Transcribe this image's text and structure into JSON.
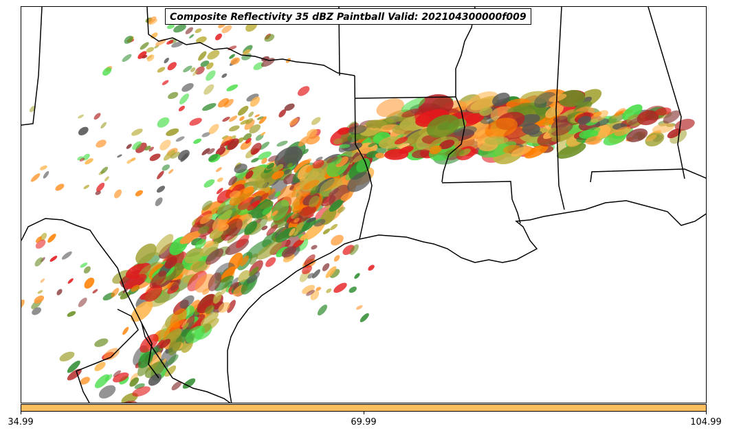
{
  "title": "Composite Reflectivity 35 dBZ Paintball Valid: 202104300000f009",
  "colorbar": {
    "color": "#ffbf5e",
    "ticks": [
      "34.99",
      "69.99",
      "104.99"
    ]
  },
  "map": {
    "region": "Texas, Louisiana, Mississippi, Alabama and northern Mexico",
    "boundary_color": "#000000",
    "paintball_colors": [
      "#e41a1c",
      "#ff7f00",
      "#ff9933",
      "#ffb347",
      "#b22222",
      "#8b3a3a",
      "#2e8b2e",
      "#44dd44",
      "#6b8e23",
      "#bdb241",
      "#a0a030",
      "#555555"
    ]
  }
}
